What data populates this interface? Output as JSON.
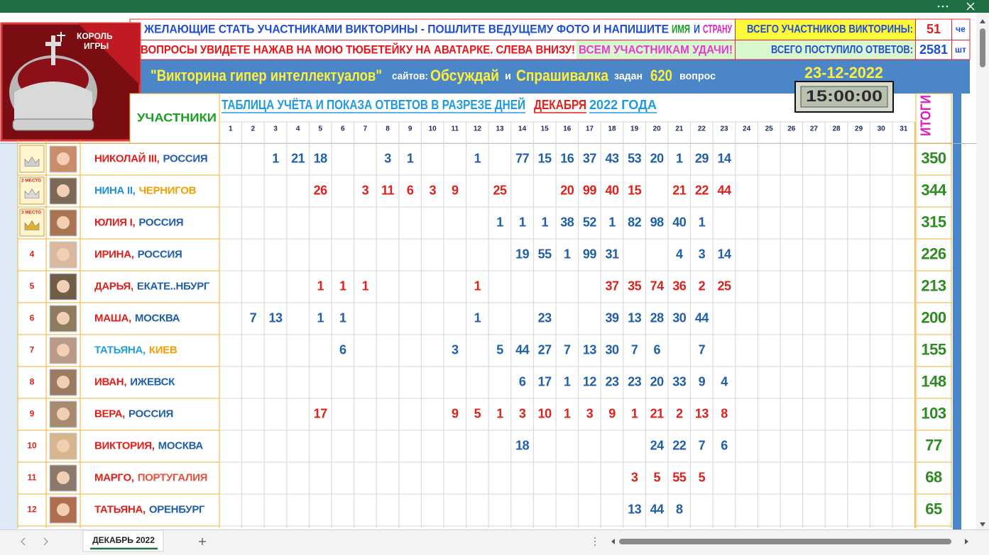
{
  "header": {
    "logo": [
      "КОРОЛЬ",
      "ИГРЫ"
    ],
    "line1": [
      {
        "text": "ЖЕЛАЮЩИЕ СТАТЬ УЧАСТНИКАМИ ВИКТОРИНЫ - ПОШЛИТЕ ВЕДУЩЕМУ ФОТО И НАПИШИТЕ",
        "color": "#1f4fd0"
      },
      {
        "text": "ИМЯ",
        "color": "#1a9e22"
      },
      {
        "text": "И",
        "color": "#1f4fd0"
      },
      {
        "text": "СТРАНУ",
        "color": "#e020c0"
      }
    ],
    "line2": [
      {
        "text": "ВОПРОСЫ УВИДЕТЕ НАЖАВ НА МОЮ ТЮБЕТЕЙКУ НА АВАТАРКЕ. СЛЕВА ВНИЗУ!",
        "color": "#e8141a"
      },
      {
        "text": "ВСЕМ УЧАСТНИКАМ УДАЧИ!",
        "color": "#e23cd0"
      }
    ],
    "participants_label": "ВСЕГО УЧАСТНИКОВ ВИКТОРИНЫ:",
    "participants": 51,
    "participants_unit": "че",
    "answers_label": "ВСЕГО ПОСТУПИЛО ОТВЕТОВ:",
    "answers": 2581,
    "answers_unit": "шт",
    "banner": [
      {
        "text": "\"Викторина гипер интеллектуалов\"",
        "color": "#ffef3a"
      },
      {
        "text": "сайтов:",
        "color": "#ffffff"
      },
      {
        "text": "Обсуждай",
        "color": "#ffef3a"
      },
      {
        "text": "и",
        "color": "#ffffff"
      },
      {
        "text": "Спрашивалка",
        "color": "#ffef3a"
      },
      {
        "text": "задан",
        "color": "#ffffff"
      },
      {
        "text": "620",
        "color": "#ffef3a"
      },
      {
        "text": "вопрос",
        "color": "#ffffff"
      }
    ],
    "date": "23-12-2022",
    "clock": "15:00:00"
  },
  "table": {
    "participants_header": "УЧАСТНИКИ",
    "caption": [
      {
        "text": "ТАБЛИЦА УЧЁТА И ПОКАЗА ОТВЕТОВ В РАЗРЕЗЕ ДНЕЙ",
        "color": "#1e9be0"
      },
      {
        "text": "ДЕКАБРЯ",
        "color": "#e0201a"
      },
      {
        "text": "2022 ГОДА",
        "color": "#1e9be0"
      }
    ],
    "totals_header": "ИТОГИ",
    "days": [
      1,
      2,
      3,
      4,
      5,
      6,
      7,
      8,
      9,
      10,
      11,
      12,
      13,
      14,
      15,
      16,
      17,
      18,
      19,
      20,
      21,
      22,
      23,
      24,
      25,
      26,
      27,
      28,
      29,
      30,
      31
    ],
    "rows": [
      {
        "name": "НИКОЛАЙ III,",
        "name_color": "#e0201a",
        "place": "РОССИЯ",
        "place_color": "#1f5fa8",
        "color": "#1f5fa8",
        "days": [
          null,
          null,
          1,
          21,
          18,
          null,
          null,
          3,
          1,
          null,
          null,
          1,
          null,
          77,
          15,
          16,
          37,
          43,
          53,
          20,
          1,
          29,
          14,
          null,
          null,
          null,
          null,
          null,
          null,
          null,
          null
        ],
        "total": 350
      },
      {
        "rank": "2 МЕСТО",
        "name": "НИНА II,",
        "name_color": "#1f8fd8",
        "place": "ЧЕРНИГОВ",
        "place_color": "#f0a000",
        "color": "#e0201a",
        "days": [
          null,
          null,
          null,
          null,
          26,
          null,
          3,
          11,
          6,
          3,
          9,
          null,
          25,
          null,
          null,
          20,
          99,
          40,
          15,
          null,
          21,
          22,
          44,
          null,
          null,
          null,
          null,
          null,
          null,
          null,
          null
        ],
        "total": 344
      },
      {
        "rank": "3 МЕСТО",
        "name": "ЮЛИЯ I,",
        "name_color": "#e0201a",
        "place": "РОССИЯ",
        "place_color": "#1f5fa8",
        "color": "#1f5fa8",
        "days": [
          null,
          null,
          null,
          null,
          null,
          null,
          null,
          null,
          null,
          null,
          null,
          null,
          1,
          1,
          1,
          38,
          52,
          1,
          82,
          98,
          40,
          1,
          null,
          null,
          null,
          null,
          null,
          null,
          null,
          null,
          null
        ],
        "total": 315
      },
      {
        "rank": 4,
        "name": "ИРИНА,",
        "name_color": "#e0201a",
        "place": "РОССИЯ",
        "place_color": "#1f5fa8",
        "color": "#1f5fa8",
        "days": [
          null,
          null,
          null,
          null,
          null,
          null,
          null,
          null,
          null,
          null,
          null,
          null,
          null,
          19,
          55,
          1,
          99,
          31,
          null,
          null,
          4,
          3,
          14,
          null,
          null,
          null,
          null,
          null,
          null,
          null,
          null
        ],
        "total": 226
      },
      {
        "rank": 5,
        "name": "ДАРЬЯ,",
        "name_color": "#e0201a",
        "place": "ЕКАТЕ..НБУРГ",
        "place_color": "#1f5fa8",
        "color": "#e0201a",
        "days": [
          null,
          null,
          null,
          null,
          1,
          1,
          1,
          null,
          null,
          null,
          null,
          1,
          null,
          null,
          null,
          null,
          null,
          37,
          35,
          74,
          36,
          2,
          25,
          null,
          null,
          null,
          null,
          null,
          null,
          null,
          null
        ],
        "total": 213
      },
      {
        "rank": 6,
        "name": "МАША,",
        "name_color": "#e0201a",
        "place": "МОСКВА",
        "place_color": "#1f5fa8",
        "color": "#1f5fa8",
        "days": [
          null,
          7,
          13,
          null,
          1,
          1,
          null,
          null,
          null,
          null,
          null,
          1,
          null,
          null,
          23,
          null,
          null,
          39,
          13,
          28,
          30,
          44,
          null,
          null,
          null,
          null,
          null,
          null,
          null,
          null,
          null
        ],
        "total": 200
      },
      {
        "rank": 7,
        "name": "ТАТЬЯНА,",
        "name_color": "#1f9fe0",
        "place": "КИЕВ",
        "place_color": "#f0a000",
        "color": "#1f5fa8",
        "days": [
          null,
          null,
          null,
          null,
          null,
          6,
          null,
          null,
          null,
          null,
          3,
          null,
          5,
          44,
          27,
          7,
          13,
          30,
          7,
          6,
          null,
          7,
          null,
          null,
          null,
          null,
          null,
          null,
          null,
          null,
          null
        ],
        "total": 155
      },
      {
        "rank": 8,
        "name": "ИВАН,",
        "name_color": "#e0201a",
        "place": "ИЖЕВСК",
        "place_color": "#1f5fa8",
        "color": "#1f5fa8",
        "days": [
          null,
          null,
          null,
          null,
          null,
          null,
          null,
          null,
          null,
          null,
          null,
          null,
          null,
          6,
          17,
          1,
          12,
          23,
          23,
          20,
          33,
          9,
          4,
          null,
          null,
          null,
          null,
          null,
          null,
          null,
          null
        ],
        "total": 148
      },
      {
        "rank": 9,
        "name": "ВЕРА,",
        "name_color": "#e0201a",
        "place": "РОССИЯ",
        "place_color": "#1f5fa8",
        "color": "#e0201a",
        "days": [
          null,
          null,
          null,
          null,
          17,
          null,
          null,
          null,
          null,
          null,
          9,
          5,
          1,
          3,
          10,
          1,
          3,
          9,
          1,
          21,
          2,
          13,
          8,
          null,
          null,
          null,
          null,
          null,
          null,
          null,
          null
        ],
        "total": 103
      },
      {
        "rank": 10,
        "name": "ВИКТОРИЯ,",
        "name_color": "#e0201a",
        "place": "МОСКВА",
        "place_color": "#1f5fa8",
        "color": "#1f5fa8",
        "days": [
          null,
          null,
          null,
          null,
          null,
          null,
          null,
          null,
          null,
          null,
          null,
          null,
          null,
          18,
          null,
          null,
          null,
          null,
          null,
          24,
          22,
          7,
          6,
          null,
          null,
          null,
          null,
          null,
          null,
          null,
          null
        ],
        "total": 77
      },
      {
        "rank": 11,
        "name": "МАРГО,",
        "name_color": "#e0201a",
        "place": "ПОРТУГАЛИЯ",
        "place_color": "#e8503a",
        "color": "#e0201a",
        "days": [
          null,
          null,
          null,
          null,
          null,
          null,
          null,
          null,
          null,
          null,
          null,
          null,
          null,
          null,
          null,
          null,
          null,
          null,
          3,
          5,
          55,
          5,
          null,
          null,
          null,
          null,
          null,
          null,
          null,
          null,
          null
        ],
        "total": 68
      },
      {
        "rank": 12,
        "name": "ТАТЬЯНА,",
        "name_color": "#e0201a",
        "place": "ОРЕНБУРГ",
        "place_color": "#1f5fa8",
        "color": "#1f5fa8",
        "days": [
          null,
          null,
          null,
          null,
          null,
          null,
          null,
          null,
          null,
          null,
          null,
          null,
          null,
          null,
          null,
          null,
          null,
          null,
          13,
          44,
          8,
          null,
          null,
          null,
          null,
          null,
          null,
          null,
          null,
          null,
          null
        ],
        "total": 65
      }
    ]
  },
  "tabs": {
    "sheet": "ДЕКАБРЬ 2022"
  }
}
